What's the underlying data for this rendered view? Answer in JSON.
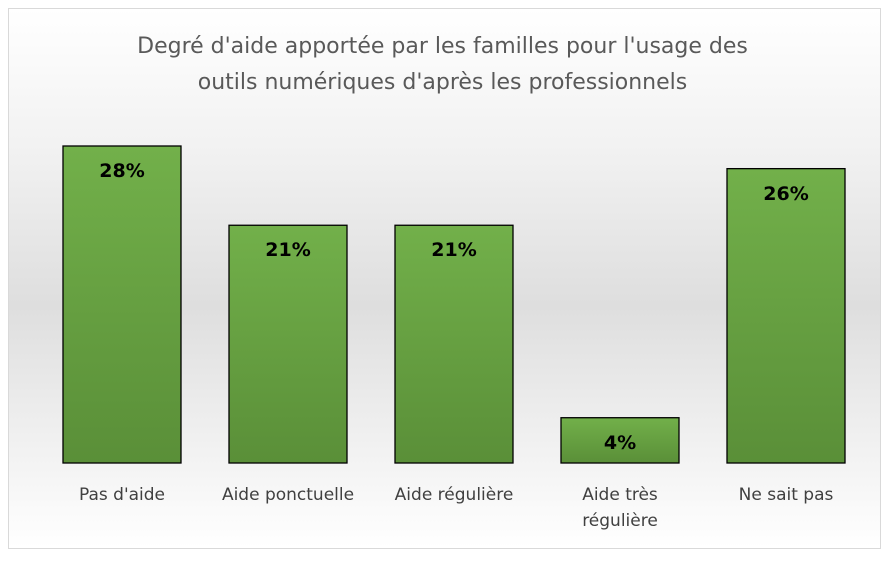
{
  "chart_data": {
    "type": "bar",
    "title": [
      "Degré d'aide apportée par les familles pour l'usage des",
      "outils numériques d'après les professionnels"
    ],
    "categories": [
      "Pas d'aide",
      "Aide ponctuelle",
      "Aide régulière",
      "Aide très régulière",
      "Ne sait pas"
    ],
    "values": [
      28,
      21,
      21,
      4,
      26
    ],
    "value_labels": [
      "28%",
      "21%",
      "21%",
      "4%",
      "26%"
    ],
    "color": "#6aa443"
  }
}
